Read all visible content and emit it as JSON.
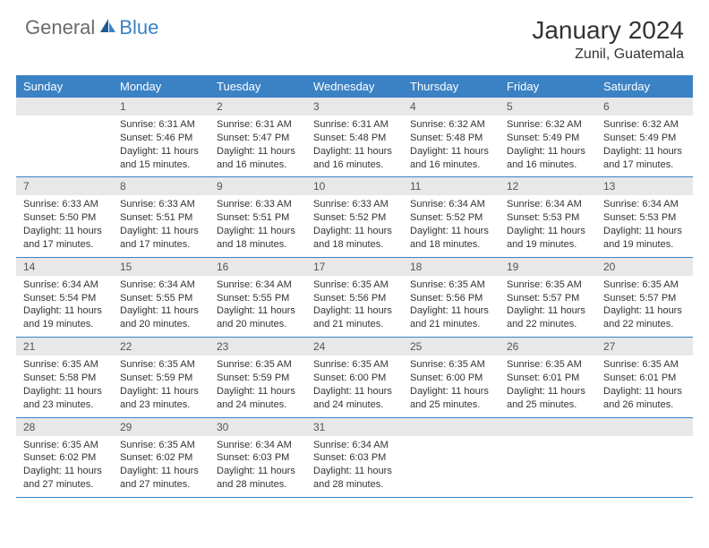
{
  "logo": {
    "part1": "General",
    "part2": "Blue"
  },
  "title": "January 2024",
  "location": "Zunil, Guatemala",
  "colors": {
    "header_bg": "#3b82c4",
    "header_text": "#ffffff",
    "daynum_bg": "#e8e8e8",
    "daynum_text": "#555555",
    "body_text": "#333333",
    "border": "#3b82c4",
    "logo_gray": "#6b6b6b",
    "logo_blue": "#3b82c4"
  },
  "day_names": [
    "Sunday",
    "Monday",
    "Tuesday",
    "Wednesday",
    "Thursday",
    "Friday",
    "Saturday"
  ],
  "weeks": [
    [
      null,
      {
        "n": "1",
        "sr": "6:31 AM",
        "ss": "5:46 PM",
        "dl": "11 hours and 15 minutes."
      },
      {
        "n": "2",
        "sr": "6:31 AM",
        "ss": "5:47 PM",
        "dl": "11 hours and 16 minutes."
      },
      {
        "n": "3",
        "sr": "6:31 AM",
        "ss": "5:48 PM",
        "dl": "11 hours and 16 minutes."
      },
      {
        "n": "4",
        "sr": "6:32 AM",
        "ss": "5:48 PM",
        "dl": "11 hours and 16 minutes."
      },
      {
        "n": "5",
        "sr": "6:32 AM",
        "ss": "5:49 PM",
        "dl": "11 hours and 16 minutes."
      },
      {
        "n": "6",
        "sr": "6:32 AM",
        "ss": "5:49 PM",
        "dl": "11 hours and 17 minutes."
      }
    ],
    [
      {
        "n": "7",
        "sr": "6:33 AM",
        "ss": "5:50 PM",
        "dl": "11 hours and 17 minutes."
      },
      {
        "n": "8",
        "sr": "6:33 AM",
        "ss": "5:51 PM",
        "dl": "11 hours and 17 minutes."
      },
      {
        "n": "9",
        "sr": "6:33 AM",
        "ss": "5:51 PM",
        "dl": "11 hours and 18 minutes."
      },
      {
        "n": "10",
        "sr": "6:33 AM",
        "ss": "5:52 PM",
        "dl": "11 hours and 18 minutes."
      },
      {
        "n": "11",
        "sr": "6:34 AM",
        "ss": "5:52 PM",
        "dl": "11 hours and 18 minutes."
      },
      {
        "n": "12",
        "sr": "6:34 AM",
        "ss": "5:53 PM",
        "dl": "11 hours and 19 minutes."
      },
      {
        "n": "13",
        "sr": "6:34 AM",
        "ss": "5:53 PM",
        "dl": "11 hours and 19 minutes."
      }
    ],
    [
      {
        "n": "14",
        "sr": "6:34 AM",
        "ss": "5:54 PM",
        "dl": "11 hours and 19 minutes."
      },
      {
        "n": "15",
        "sr": "6:34 AM",
        "ss": "5:55 PM",
        "dl": "11 hours and 20 minutes."
      },
      {
        "n": "16",
        "sr": "6:34 AM",
        "ss": "5:55 PM",
        "dl": "11 hours and 20 minutes."
      },
      {
        "n": "17",
        "sr": "6:35 AM",
        "ss": "5:56 PM",
        "dl": "11 hours and 21 minutes."
      },
      {
        "n": "18",
        "sr": "6:35 AM",
        "ss": "5:56 PM",
        "dl": "11 hours and 21 minutes."
      },
      {
        "n": "19",
        "sr": "6:35 AM",
        "ss": "5:57 PM",
        "dl": "11 hours and 22 minutes."
      },
      {
        "n": "20",
        "sr": "6:35 AM",
        "ss": "5:57 PM",
        "dl": "11 hours and 22 minutes."
      }
    ],
    [
      {
        "n": "21",
        "sr": "6:35 AM",
        "ss": "5:58 PM",
        "dl": "11 hours and 23 minutes."
      },
      {
        "n": "22",
        "sr": "6:35 AM",
        "ss": "5:59 PM",
        "dl": "11 hours and 23 minutes."
      },
      {
        "n": "23",
        "sr": "6:35 AM",
        "ss": "5:59 PM",
        "dl": "11 hours and 24 minutes."
      },
      {
        "n": "24",
        "sr": "6:35 AM",
        "ss": "6:00 PM",
        "dl": "11 hours and 24 minutes."
      },
      {
        "n": "25",
        "sr": "6:35 AM",
        "ss": "6:00 PM",
        "dl": "11 hours and 25 minutes."
      },
      {
        "n": "26",
        "sr": "6:35 AM",
        "ss": "6:01 PM",
        "dl": "11 hours and 25 minutes."
      },
      {
        "n": "27",
        "sr": "6:35 AM",
        "ss": "6:01 PM",
        "dl": "11 hours and 26 minutes."
      }
    ],
    [
      {
        "n": "28",
        "sr": "6:35 AM",
        "ss": "6:02 PM",
        "dl": "11 hours and 27 minutes."
      },
      {
        "n": "29",
        "sr": "6:35 AM",
        "ss": "6:02 PM",
        "dl": "11 hours and 27 minutes."
      },
      {
        "n": "30",
        "sr": "6:34 AM",
        "ss": "6:03 PM",
        "dl": "11 hours and 28 minutes."
      },
      {
        "n": "31",
        "sr": "6:34 AM",
        "ss": "6:03 PM",
        "dl": "11 hours and 28 minutes."
      },
      null,
      null,
      null
    ]
  ],
  "labels": {
    "sunrise": "Sunrise:",
    "sunset": "Sunset:",
    "daylight": "Daylight:"
  }
}
